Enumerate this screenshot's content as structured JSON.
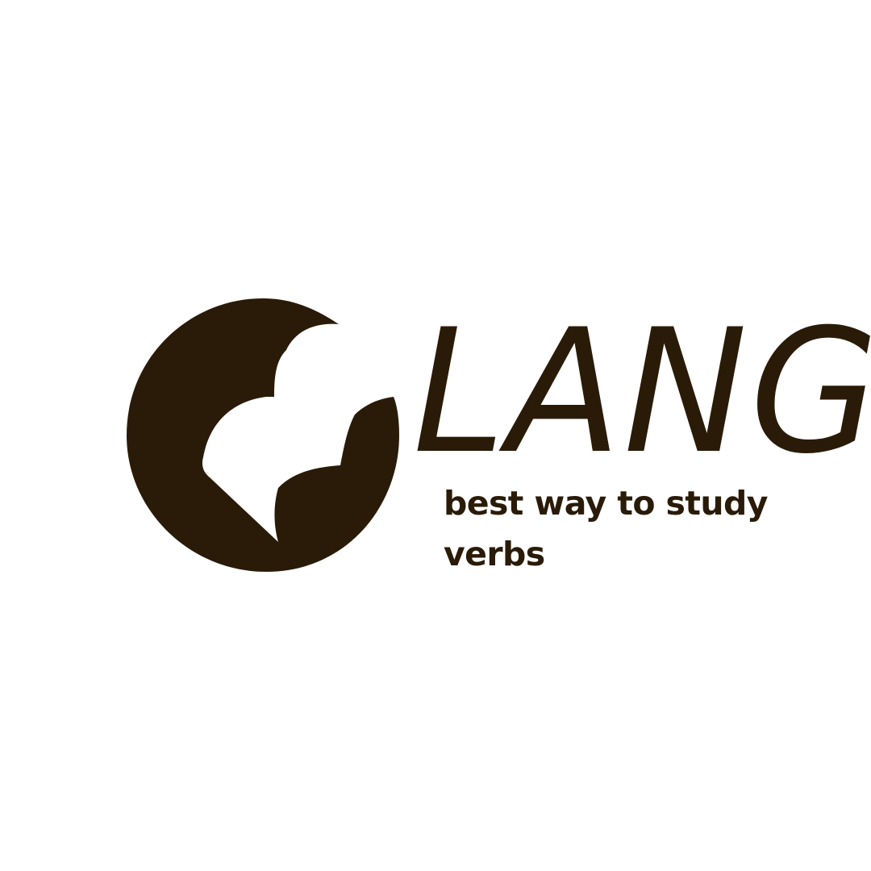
{
  "brand": {
    "name": "LANG",
    "tagline": "best way to study verbs",
    "color": "#2a1b08",
    "background": "#ffffff",
    "logo_icon": "globe-heart-logo"
  }
}
